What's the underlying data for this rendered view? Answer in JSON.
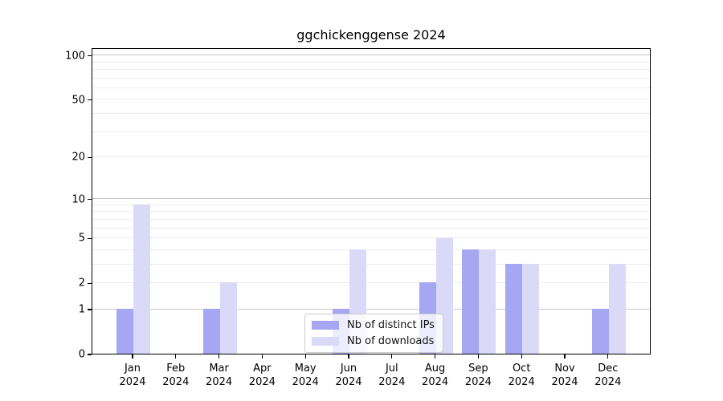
{
  "figure": {
    "title": "ggchickenggense 2024"
  },
  "chart_data": {
    "type": "bar",
    "title": "ggchickenggense 2024",
    "categories": [
      "Jan 2024",
      "Feb 2024",
      "Mar 2024",
      "Apr 2024",
      "May 2024",
      "Jun 2024",
      "Jul 2024",
      "Aug 2024",
      "Sep 2024",
      "Oct 2024",
      "Nov 2024",
      "Dec 2024"
    ],
    "series": [
      {
        "name": "Nb of distinct IPs",
        "color": "#a6a6f2",
        "values": [
          1,
          0,
          1,
          0,
          0,
          1,
          0,
          2,
          4,
          3,
          0,
          1
        ]
      },
      {
        "name": "Nb of downloads",
        "color": "#dadaf8",
        "values": [
          9,
          0,
          2,
          0,
          0,
          4,
          0,
          5,
          4,
          3,
          0,
          3
        ]
      }
    ],
    "xlabel": "",
    "ylabel": "",
    "yscale": "log1p",
    "yticks": [
      0,
      1,
      2,
      5,
      10,
      20,
      50,
      100
    ],
    "ylim": [
      0,
      113
    ],
    "grid": true,
    "gridline_major_values": [
      1,
      10,
      100
    ],
    "gridline_minor_values": [
      2,
      3,
      4,
      5,
      6,
      7,
      8,
      9,
      20,
      30,
      40,
      50,
      60,
      70,
      80,
      90
    ],
    "legend_position": "lower center"
  },
  "colors": {
    "axis": "#000000",
    "grid_major": "#c6c6c6",
    "grid_minor": "#ececec",
    "legend_border": "#cccccc"
  }
}
